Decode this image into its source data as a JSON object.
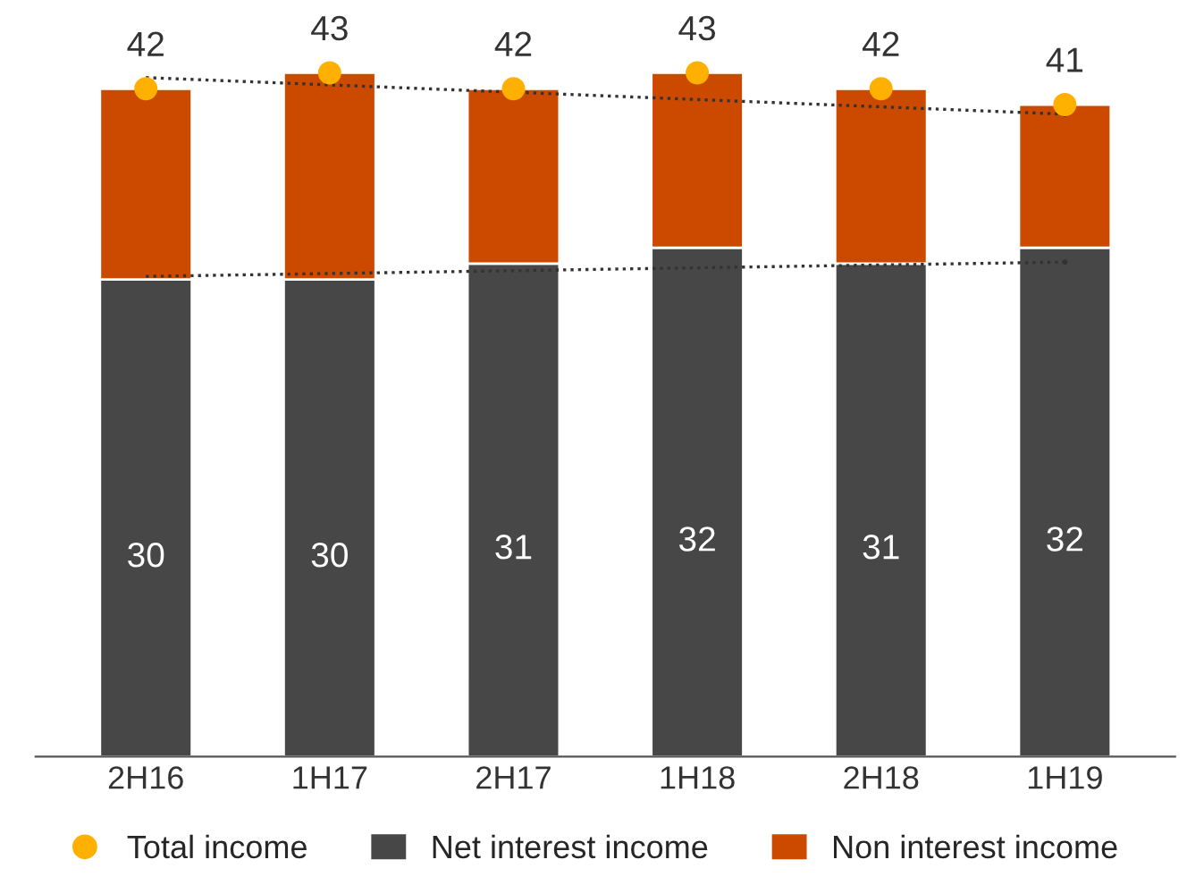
{
  "chart_data": {
    "type": "bar",
    "stacked": true,
    "categories": [
      "2H16",
      "1H17",
      "2H17",
      "1H18",
      "2H18",
      "1H19"
    ],
    "tick_labels": "x",
    "grid": false,
    "legend": "bottom",
    "series": [
      {
        "name": "Net interest income",
        "color": "#474747",
        "values": [
          30,
          30,
          31,
          32,
          31,
          32
        ],
        "value_labels": [
          "30",
          "30",
          "31",
          "32",
          "31",
          "32"
        ]
      },
      {
        "name": "Non interest income",
        "color": "#cc4a00",
        "values": [
          12,
          13,
          11,
          11,
          11,
          9
        ]
      },
      {
        "name": "Total income",
        "type": "scatter",
        "color": "#ffb000",
        "marker": "circle",
        "x": [
          "2H16",
          "1H17",
          "2H17",
          "1H18",
          "2H18",
          "1H19"
        ],
        "values": [
          42,
          43,
          42,
          43,
          42,
          41
        ],
        "value_labels": [
          "42",
          "43",
          "42",
          "43",
          "42",
          "41"
        ]
      },
      {
        "type": "line",
        "color": "#333333",
        "line_style": "dotted",
        "x": [
          "2H16",
          "1H19"
        ],
        "values": [
          42.7,
          40.4
        ]
      },
      {
        "type": "line",
        "color": "#333333",
        "line_style": "dotted",
        "x": [
          "2H16",
          "1H19"
        ],
        "values": [
          30.2,
          31.1
        ]
      }
    ]
  }
}
